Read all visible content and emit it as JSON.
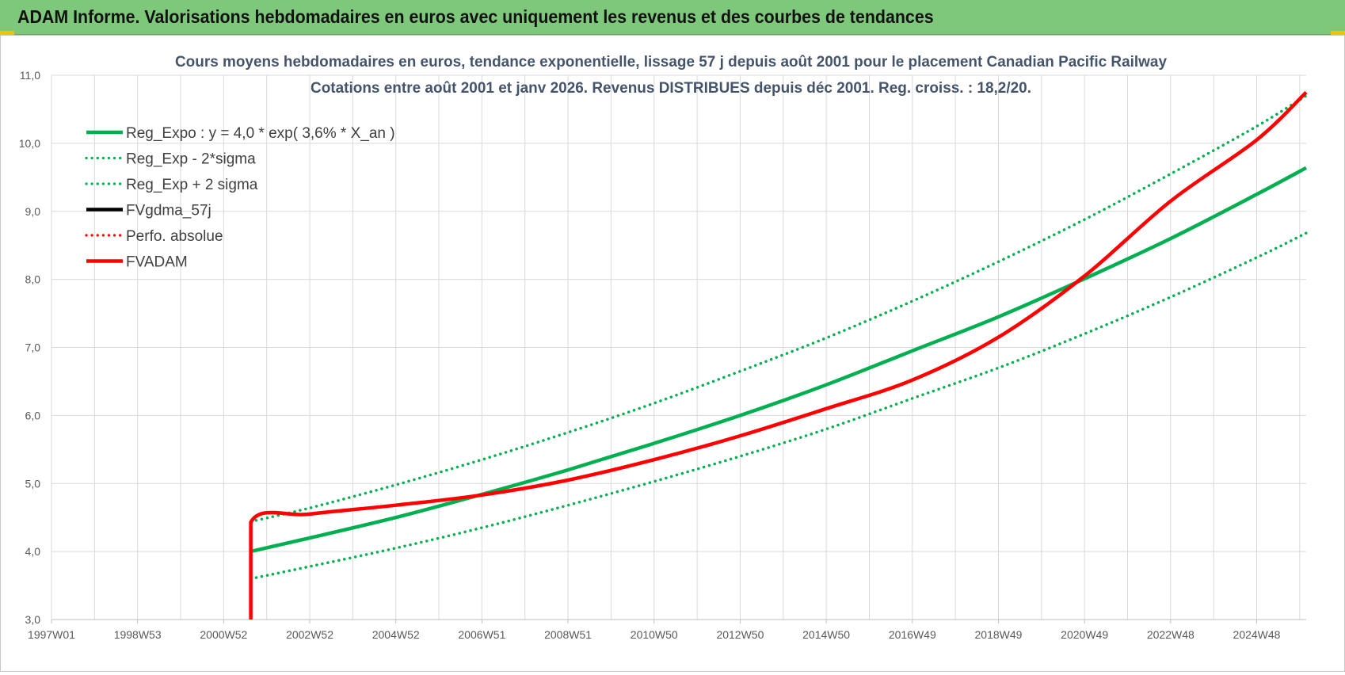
{
  "header": {
    "title": "ADAM Informe. Valorisations hebdomadaires en euros avec uniquement les revenus et des courbes de tendances"
  },
  "chart_data": {
    "type": "line",
    "title": "Cours moyens hebdomadaires en euros, tendance exponentielle, lissage 57 j depuis août 2001 pour le placement Canadian Pacific Railway",
    "subtitle": "Cotations entre août 2001 et janv 2026. Revenus DISTRIBUES depuis déc 2001. Reg. croiss. : 18,2/20.",
    "xlabel": "",
    "ylabel": "",
    "ylim": [
      3.0,
      11.0
    ],
    "ytick_labels": [
      "3,0",
      "4,0",
      "5,0",
      "6,0",
      "7,0",
      "8,0",
      "9,0",
      "10,0",
      "11,0"
    ],
    "ytick_values": [
      3,
      4,
      5,
      6,
      7,
      8,
      9,
      10,
      11
    ],
    "xlim": [
      1997.0,
      2026.15
    ],
    "xtick_labels": [
      "1997W01",
      "1998W53",
      "2000W52",
      "2002W52",
      "2004W52",
      "2006W51",
      "2008W51",
      "2010W50",
      "2012W50",
      "2014W50",
      "2016W49",
      "2018W49",
      "2020W49",
      "2022W48",
      "2024W48"
    ],
    "xtick_values": [
      1997.0,
      1999.0,
      2001.0,
      2003.0,
      2005.0,
      2007.0,
      2009.0,
      2011.0,
      2013.0,
      2015.0,
      2017.0,
      2019.0,
      2021.0,
      2023.0,
      2025.0
    ],
    "grid": true,
    "legend_position": "top-left",
    "legend": [
      {
        "label": "Reg_Expo : y = 4,0 * exp( 3,6% *  X_an )",
        "color": "#00b050",
        "style": "solid"
      },
      {
        "label": "Reg_Exp - 2*sigma",
        "color": "#00b050",
        "style": "dotted"
      },
      {
        "label": "Reg_Exp + 2 sigma",
        "color": "#00b050",
        "style": "dotted"
      },
      {
        "label": "FVgdma_57j",
        "color": "#000000",
        "style": "solid"
      },
      {
        "label": "Perfo. absolue",
        "color": "#ff0000",
        "style": "dotted"
      },
      {
        "label": "FVADAM",
        "color": "#ff0000",
        "style": "solid"
      }
    ],
    "series": [
      {
        "name": "Reg_Expo : y = 4,0 * exp( 3,6% *  X_an )",
        "color": "#00b050",
        "style": "solid",
        "x": [
          2001.63,
          2003,
          2005,
          2007,
          2009,
          2011,
          2013,
          2015,
          2017,
          2019,
          2021,
          2023,
          2025,
          2026.15
        ],
        "y": [
          4.0,
          4.2,
          4.5,
          4.84,
          5.2,
          5.59,
          6.0,
          6.45,
          6.95,
          7.45,
          8.01,
          8.6,
          9.25,
          9.64
        ]
      },
      {
        "name": "Reg_Exp - 2*sigma",
        "color": "#00b050",
        "style": "dotted",
        "x": [
          2001.63,
          2003,
          2005,
          2007,
          2009,
          2011,
          2013,
          2015,
          2017,
          2019,
          2021,
          2023,
          2025,
          2026.15
        ],
        "y": [
          3.6,
          3.78,
          4.05,
          4.35,
          4.68,
          5.03,
          5.4,
          5.8,
          6.25,
          6.7,
          7.2,
          7.74,
          8.32,
          8.68
        ]
      },
      {
        "name": "Reg_Exp + 2 sigma",
        "color": "#00b050",
        "style": "dotted",
        "x": [
          2001.63,
          2003,
          2005,
          2007,
          2009,
          2011,
          2013,
          2015,
          2017,
          2019,
          2021,
          2023,
          2025,
          2026.15
        ],
        "y": [
          4.44,
          4.64,
          4.98,
          5.35,
          5.75,
          6.18,
          6.65,
          7.14,
          7.68,
          8.26,
          8.88,
          9.55,
          10.25,
          10.7
        ]
      },
      {
        "name": "FVADAM",
        "color": "#ff0000",
        "style": "solid",
        "x": [
          2001.63,
          2001.63,
          2003,
          2005,
          2007,
          2009,
          2011,
          2013,
          2015,
          2017,
          2019,
          2021,
          2023,
          2025,
          2026.15
        ],
        "y": [
          3.0,
          4.43,
          4.55,
          4.68,
          4.83,
          5.05,
          5.35,
          5.7,
          6.1,
          6.52,
          7.15,
          8.05,
          9.15,
          10.05,
          10.75
        ]
      }
    ]
  }
}
